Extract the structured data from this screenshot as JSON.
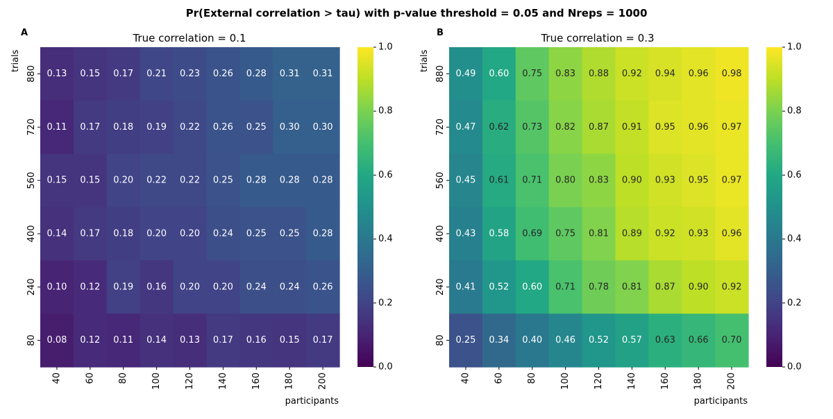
{
  "chart_data": {
    "type": "heatmap",
    "title": "Pr(External correlation > tau) with p-value threshold = 0.05 and Nreps = 1000",
    "x": [
      40,
      60,
      80,
      100,
      120,
      140,
      160,
      180,
      200
    ],
    "y": [
      880,
      720,
      560,
      400,
      240,
      80
    ],
    "xlabel": "participants",
    "ylabel": "trials",
    "colormap": "viridis",
    "vmin": 0.0,
    "vmax": 1.0,
    "colorbar_ticks": [
      "0.0",
      "0.2",
      "0.4",
      "0.6",
      "0.8",
      "1.0"
    ],
    "panels": [
      {
        "letter": "A",
        "subtitle": "True correlation = 0.1",
        "values": [
          [
            0.13,
            0.15,
            0.17,
            0.21,
            0.23,
            0.26,
            0.28,
            0.31,
            0.31
          ],
          [
            0.11,
            0.17,
            0.18,
            0.19,
            0.22,
            0.26,
            0.25,
            0.3,
            0.3
          ],
          [
            0.15,
            0.15,
            0.2,
            0.22,
            0.22,
            0.25,
            0.28,
            0.28,
            0.28
          ],
          [
            0.14,
            0.17,
            0.18,
            0.2,
            0.2,
            0.24,
            0.25,
            0.25,
            0.28
          ],
          [
            0.1,
            0.12,
            0.19,
            0.16,
            0.2,
            0.2,
            0.24,
            0.24,
            0.26
          ],
          [
            0.08,
            0.12,
            0.11,
            0.14,
            0.13,
            0.17,
            0.16,
            0.15,
            0.17
          ]
        ]
      },
      {
        "letter": "B",
        "subtitle": "True correlation = 0.3",
        "values": [
          [
            0.49,
            0.6,
            0.75,
            0.83,
            0.88,
            0.92,
            0.94,
            0.96,
            0.98
          ],
          [
            0.47,
            0.62,
            0.73,
            0.82,
            0.87,
            0.91,
            0.95,
            0.96,
            0.97
          ],
          [
            0.45,
            0.61,
            0.71,
            0.8,
            0.83,
            0.9,
            0.93,
            0.95,
            0.97
          ],
          [
            0.43,
            0.58,
            0.69,
            0.75,
            0.81,
            0.89,
            0.92,
            0.93,
            0.96
          ],
          [
            0.41,
            0.52,
            0.6,
            0.71,
            0.78,
            0.81,
            0.87,
            0.9,
            0.92
          ],
          [
            0.25,
            0.34,
            0.4,
            0.46,
            0.52,
            0.57,
            0.63,
            0.66,
            0.7
          ]
        ]
      }
    ]
  }
}
